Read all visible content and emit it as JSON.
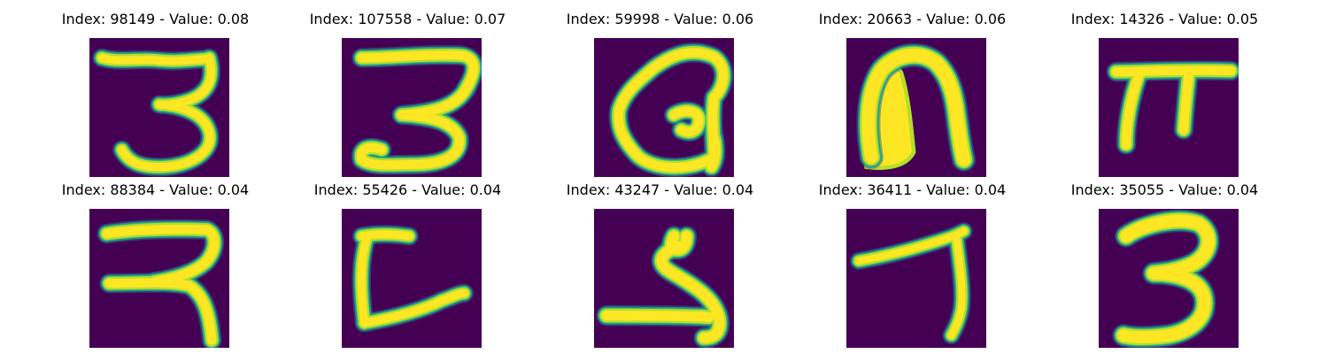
{
  "figure": {
    "background": "#ffffff",
    "image_background": "#440154",
    "stroke_colors": [
      "#fde725",
      "#b5de2b",
      "#35b779",
      "#1f9e89",
      "#31688e"
    ],
    "colormap": "viridis"
  },
  "panels": [
    {
      "title": "Index: 98149 - Value: 0.08",
      "index": "98149",
      "value": "0.08",
      "glyph": "3"
    },
    {
      "title": "Index: 107558 - Value: 0.07",
      "index": "107558",
      "value": "0.07",
      "glyph": "3"
    },
    {
      "title": "Index: 59998 - Value: 0.06",
      "index": "59998",
      "value": "0.06",
      "glyph": "loop"
    },
    {
      "title": "Index: 20663 - Value: 0.06",
      "index": "20663",
      "value": "0.06",
      "glyph": "arch"
    },
    {
      "title": "Index: 14326 - Value: 0.05",
      "index": "14326",
      "value": "0.05",
      "glyph": "pi"
    },
    {
      "title": "Index: 88384 - Value: 0.04",
      "index": "88384",
      "value": "0.04",
      "glyph": "3"
    },
    {
      "title": "Index: 55426 - Value: 0.04",
      "index": "55426",
      "value": "0.04",
      "glyph": "L"
    },
    {
      "title": "Index: 43247 - Value: 0.04",
      "index": "43247",
      "value": "0.04",
      "glyph": "5"
    },
    {
      "title": "Index: 36411 - Value: 0.04",
      "index": "36411",
      "value": "0.04",
      "glyph": "7"
    },
    {
      "title": "Index: 35055 - Value: 0.04",
      "index": "35055",
      "value": "0.04",
      "glyph": "3"
    }
  ]
}
